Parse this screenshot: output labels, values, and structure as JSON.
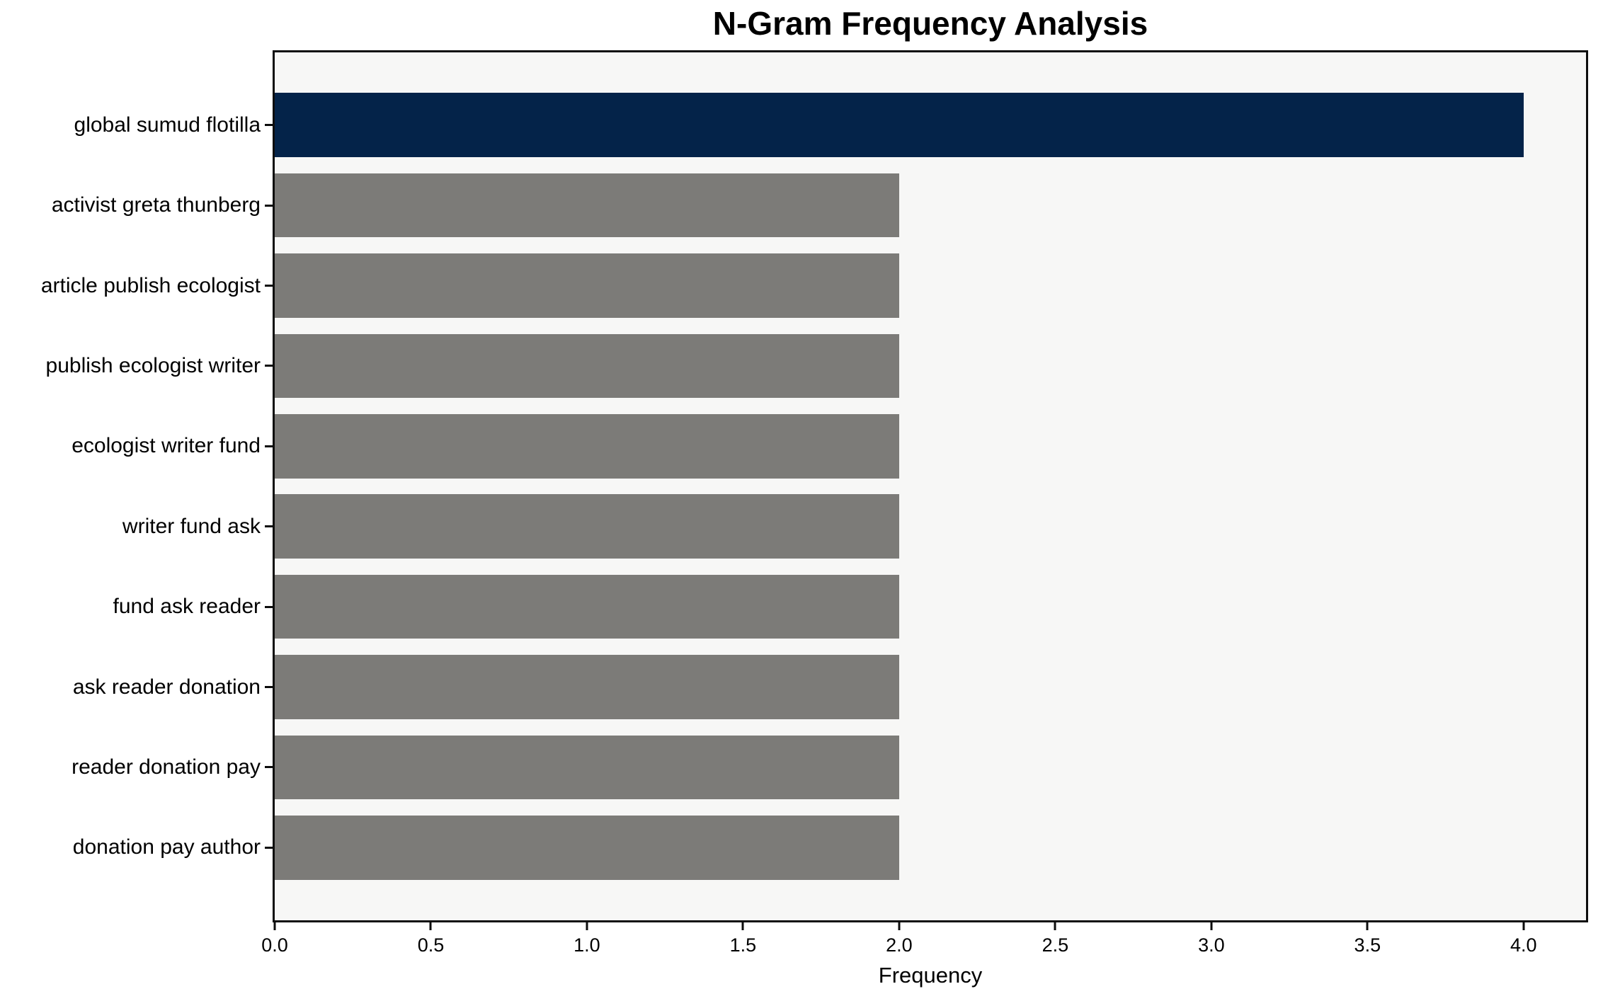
{
  "chart_data": {
    "type": "bar",
    "orientation": "horizontal",
    "title": "N-Gram Frequency Analysis",
    "xlabel": "Frequency",
    "ylabel": "",
    "categories": [
      "global sumud flotilla",
      "activist greta thunberg",
      "article publish ecologist",
      "publish ecologist writer",
      "ecologist writer fund",
      "writer fund ask",
      "fund ask reader",
      "ask reader donation",
      "reader donation pay",
      "donation pay author"
    ],
    "values": [
      4,
      2,
      2,
      2,
      2,
      2,
      2,
      2,
      2,
      2
    ],
    "highlight_index": 0,
    "xlim": [
      0,
      4.2
    ],
    "xticks": [
      0,
      0.5,
      1,
      1.5,
      2,
      2.5,
      3,
      3.5,
      4
    ],
    "xtick_labels": [
      "0.0",
      "0.5",
      "1.0",
      "1.5",
      "2.0",
      "2.5",
      "3.0",
      "3.5",
      "4.0"
    ],
    "grid": false,
    "legend": false,
    "bar_relative_height": 0.8,
    "colors": {
      "highlight": "#042349",
      "bar": "#7c7b78",
      "plot_background": "#f7f7f6",
      "spine": "#0d0d0d",
      "text": "#000000"
    }
  }
}
